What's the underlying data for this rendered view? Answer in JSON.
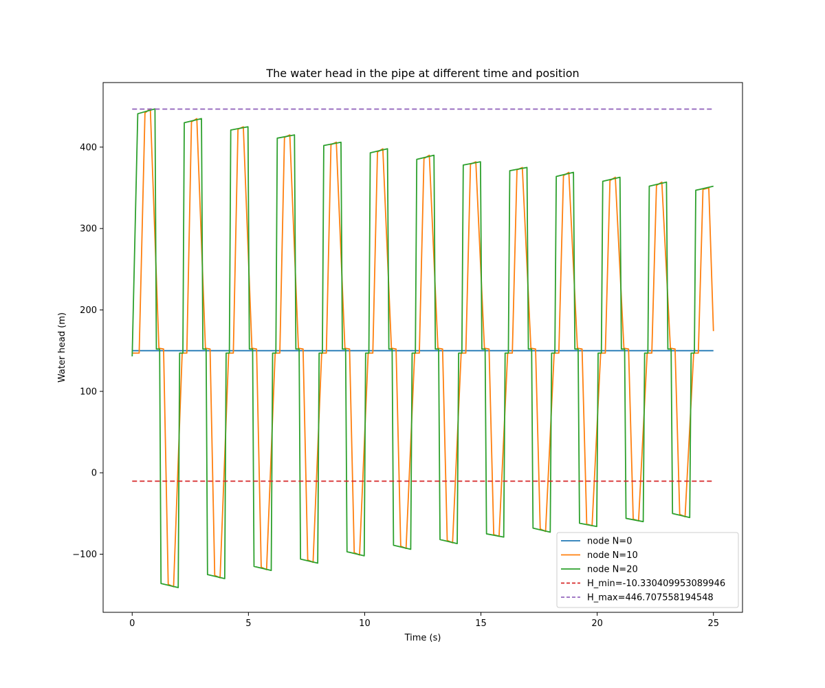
{
  "chart_data": {
    "type": "line",
    "title": "The water head in the pipe at different time and position",
    "xlabel": "Time (s)",
    "ylabel": "Water head (m)",
    "xlim": [
      -1.25,
      26.25
    ],
    "ylim": [
      -171.4,
      479.3
    ],
    "xticks": [
      0,
      5,
      10,
      15,
      20,
      25
    ],
    "yticks": [
      -100,
      0,
      100,
      200,
      300,
      400
    ],
    "legend_position": "lower-right",
    "grid": false,
    "cycles": {
      "period": 2.0,
      "count": 12.5,
      "N20_high": [
        [
          0.24,
          441
        ],
        [
          0.98,
          447
        ],
        [
          2.24,
          430
        ],
        [
          2.98,
          435
        ],
        [
          4.24,
          421
        ],
        [
          4.98,
          425
        ],
        [
          6.24,
          411
        ],
        [
          6.98,
          415
        ],
        [
          8.24,
          402
        ],
        [
          8.98,
          406
        ],
        [
          10.24,
          393
        ],
        [
          10.98,
          398
        ],
        [
          12.24,
          385
        ],
        [
          12.98,
          390
        ],
        [
          14.24,
          378
        ],
        [
          14.98,
          382
        ],
        [
          16.24,
          371
        ],
        [
          16.98,
          375
        ],
        [
          18.24,
          364
        ],
        [
          18.98,
          369
        ],
        [
          20.24,
          358
        ],
        [
          20.98,
          363
        ],
        [
          22.24,
          352
        ],
        [
          22.98,
          357
        ],
        [
          24.24,
          347
        ],
        [
          25.0,
          352
        ]
      ],
      "N20_low": [
        [
          1.24,
          -136
        ],
        [
          1.98,
          -141
        ],
        [
          3.24,
          -125
        ],
        [
          3.98,
          -130
        ],
        [
          5.24,
          -115
        ],
        [
          5.98,
          -120
        ],
        [
          7.24,
          -106
        ],
        [
          7.98,
          -111
        ],
        [
          9.24,
          -97
        ],
        [
          9.98,
          -102
        ],
        [
          11.24,
          -89
        ],
        [
          11.98,
          -94
        ],
        [
          13.24,
          -82
        ],
        [
          13.98,
          -87
        ],
        [
          15.24,
          -75
        ],
        [
          15.98,
          -79
        ],
        [
          17.24,
          -68
        ],
        [
          17.98,
          -73
        ],
        [
          19.24,
          -62
        ],
        [
          19.98,
          -66
        ],
        [
          21.24,
          -56
        ],
        [
          21.98,
          -60
        ],
        [
          23.24,
          -50
        ],
        [
          23.98,
          -55
        ]
      ],
      "N10_high_end": 174
    },
    "series": [
      {
        "name": "node N=0",
        "color": "#1f77b4",
        "dash": "solid",
        "x": [
          0,
          25
        ],
        "y": [
          150,
          150
        ]
      },
      {
        "name": "node N=10",
        "color": "#ff7f0e",
        "dash": "solid",
        "x": [],
        "y": []
      },
      {
        "name": "node N=20",
        "color": "#2ca02c",
        "dash": "solid",
        "x": [],
        "y": []
      },
      {
        "name": "H_min=-10.330409953089946",
        "color": "#d62728",
        "dash": "dashed",
        "x": [
          0,
          25
        ],
        "y": [
          -10.330409953089946,
          -10.330409953089946
        ]
      },
      {
        "name": "H_max=446.707558194548",
        "color": "#9467bd",
        "dash": "dashed",
        "x": [
          0,
          25
        ],
        "y": [
          446.707558194548,
          446.707558194548
        ]
      }
    ]
  }
}
